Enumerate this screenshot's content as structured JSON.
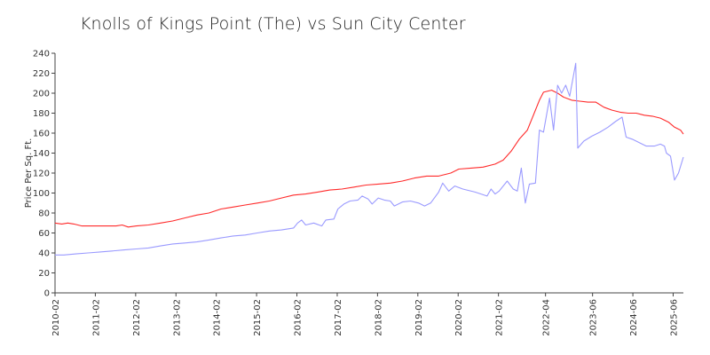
{
  "chart_data": {
    "type": "line",
    "title": "Knolls of Kings Point (The) vs Sun City Center",
    "xlabel": "",
    "ylabel": "Price Per Sq. Ft.",
    "ylim": [
      0,
      240
    ],
    "yticks": [
      0,
      20,
      40,
      60,
      80,
      100,
      120,
      140,
      160,
      180,
      200,
      220,
      240
    ],
    "xlim": [
      2010.083,
      2025.67
    ],
    "xticks": [
      {
        "label": "2010-02",
        "x": 2010.083
      },
      {
        "label": "2011-02",
        "x": 2011.083
      },
      {
        "label": "2012-02",
        "x": 2012.083
      },
      {
        "label": "2013-02",
        "x": 2013.083
      },
      {
        "label": "2014-02",
        "x": 2014.083
      },
      {
        "label": "2015-02",
        "x": 2015.083
      },
      {
        "label": "2016-02",
        "x": 2016.083
      },
      {
        "label": "2017-02",
        "x": 2017.083
      },
      {
        "label": "2018-02",
        "x": 2018.083
      },
      {
        "label": "2019-02",
        "x": 2019.083
      },
      {
        "label": "2020-02",
        "x": 2020.083
      },
      {
        "label": "2021-02",
        "x": 2021.083
      },
      {
        "label": "2022-04",
        "x": 2022.25
      },
      {
        "label": "2023-06",
        "x": 2023.417
      },
      {
        "label": "2024-06",
        "x": 2024.417
      },
      {
        "label": "2025-06",
        "x": 2025.417
      }
    ],
    "grid": false,
    "legend": "none",
    "series": [
      {
        "color": "#ff2a2a",
        "points": [
          [
            2010.08,
            70
          ],
          [
            2010.25,
            69
          ],
          [
            2010.4,
            70
          ],
          [
            2010.55,
            69
          ],
          [
            2010.75,
            67
          ],
          [
            2011.0,
            67
          ],
          [
            2011.3,
            67
          ],
          [
            2011.6,
            67
          ],
          [
            2011.75,
            68
          ],
          [
            2011.9,
            66
          ],
          [
            2012.1,
            67
          ],
          [
            2012.4,
            68
          ],
          [
            2012.7,
            70
          ],
          [
            2013.0,
            72
          ],
          [
            2013.3,
            75
          ],
          [
            2013.6,
            78
          ],
          [
            2013.9,
            80
          ],
          [
            2014.2,
            84
          ],
          [
            2014.5,
            86
          ],
          [
            2014.8,
            88
          ],
          [
            2015.1,
            90
          ],
          [
            2015.4,
            92
          ],
          [
            2015.7,
            95
          ],
          [
            2016.0,
            98
          ],
          [
            2016.3,
            99
          ],
          [
            2016.6,
            101
          ],
          [
            2016.9,
            103
          ],
          [
            2017.2,
            104
          ],
          [
            2017.5,
            106
          ],
          [
            2017.8,
            108
          ],
          [
            2018.1,
            109
          ],
          [
            2018.4,
            110
          ],
          [
            2018.7,
            112
          ],
          [
            2019.0,
            115
          ],
          [
            2019.3,
            117
          ],
          [
            2019.6,
            117
          ],
          [
            2019.9,
            120
          ],
          [
            2020.1,
            124
          ],
          [
            2020.4,
            125
          ],
          [
            2020.7,
            126
          ],
          [
            2021.0,
            129
          ],
          [
            2021.2,
            133
          ],
          [
            2021.4,
            142
          ],
          [
            2021.6,
            154
          ],
          [
            2021.8,
            163
          ],
          [
            2021.95,
            178
          ],
          [
            2022.1,
            193
          ],
          [
            2022.2,
            201
          ],
          [
            2022.4,
            203
          ],
          [
            2022.55,
            200
          ],
          [
            2022.7,
            196
          ],
          [
            2022.9,
            193
          ],
          [
            2023.1,
            192
          ],
          [
            2023.3,
            191
          ],
          [
            2023.5,
            191
          ],
          [
            2023.7,
            186
          ],
          [
            2023.9,
            183
          ],
          [
            2024.1,
            181
          ],
          [
            2024.3,
            180
          ],
          [
            2024.5,
            180
          ],
          [
            2024.7,
            178
          ],
          [
            2024.9,
            177
          ],
          [
            2025.1,
            175
          ],
          [
            2025.3,
            171
          ],
          [
            2025.45,
            166
          ],
          [
            2025.6,
            163
          ],
          [
            2025.67,
            159
          ]
        ]
      },
      {
        "color": "#9a9aff",
        "points": [
          [
            2010.08,
            38
          ],
          [
            2010.3,
            38
          ],
          [
            2010.6,
            39
          ],
          [
            2010.9,
            40
          ],
          [
            2011.2,
            41
          ],
          [
            2011.5,
            42
          ],
          [
            2011.8,
            43
          ],
          [
            2012.1,
            44
          ],
          [
            2012.4,
            45
          ],
          [
            2012.7,
            47
          ],
          [
            2013.0,
            49
          ],
          [
            2013.3,
            50
          ],
          [
            2013.6,
            51
          ],
          [
            2013.9,
            53
          ],
          [
            2014.2,
            55
          ],
          [
            2014.5,
            57
          ],
          [
            2014.8,
            58
          ],
          [
            2015.1,
            60
          ],
          [
            2015.4,
            62
          ],
          [
            2015.7,
            63
          ],
          [
            2016.0,
            65
          ],
          [
            2016.1,
            70
          ],
          [
            2016.2,
            73
          ],
          [
            2016.3,
            68
          ],
          [
            2016.5,
            70
          ],
          [
            2016.7,
            67
          ],
          [
            2016.8,
            73
          ],
          [
            2017.0,
            74
          ],
          [
            2017.1,
            84
          ],
          [
            2017.25,
            89
          ],
          [
            2017.4,
            92
          ],
          [
            2017.6,
            93
          ],
          [
            2017.7,
            97
          ],
          [
            2017.85,
            94
          ],
          [
            2017.95,
            89
          ],
          [
            2018.1,
            95
          ],
          [
            2018.25,
            93
          ],
          [
            2018.4,
            92
          ],
          [
            2018.5,
            87
          ],
          [
            2018.7,
            91
          ],
          [
            2018.9,
            92
          ],
          [
            2019.1,
            90
          ],
          [
            2019.25,
            87
          ],
          [
            2019.4,
            90
          ],
          [
            2019.6,
            101
          ],
          [
            2019.7,
            110
          ],
          [
            2019.85,
            102
          ],
          [
            2020.0,
            107
          ],
          [
            2020.2,
            104
          ],
          [
            2020.5,
            101
          ],
          [
            2020.8,
            97
          ],
          [
            2020.9,
            104
          ],
          [
            2021.0,
            99
          ],
          [
            2021.1,
            102
          ],
          [
            2021.3,
            112
          ],
          [
            2021.45,
            104
          ],
          [
            2021.55,
            102
          ],
          [
            2021.65,
            125
          ],
          [
            2021.75,
            90
          ],
          [
            2021.85,
            109
          ],
          [
            2022.0,
            110
          ],
          [
            2022.1,
            163
          ],
          [
            2022.2,
            161
          ],
          [
            2022.35,
            195
          ],
          [
            2022.45,
            163
          ],
          [
            2022.55,
            208
          ],
          [
            2022.65,
            200
          ],
          [
            2022.75,
            208
          ],
          [
            2022.85,
            197
          ],
          [
            2023.0,
            230
          ],
          [
            2023.05,
            145
          ],
          [
            2023.2,
            152
          ],
          [
            2023.4,
            157
          ],
          [
            2023.6,
            161
          ],
          [
            2023.8,
            166
          ],
          [
            2024.0,
            172
          ],
          [
            2024.15,
            176
          ],
          [
            2024.25,
            156
          ],
          [
            2024.4,
            154
          ],
          [
            2024.55,
            151
          ],
          [
            2024.75,
            147
          ],
          [
            2024.95,
            147
          ],
          [
            2025.1,
            149
          ],
          [
            2025.2,
            147
          ],
          [
            2025.25,
            140
          ],
          [
            2025.35,
            137
          ],
          [
            2025.45,
            113
          ],
          [
            2025.55,
            120
          ],
          [
            2025.67,
            136
          ]
        ]
      }
    ]
  }
}
